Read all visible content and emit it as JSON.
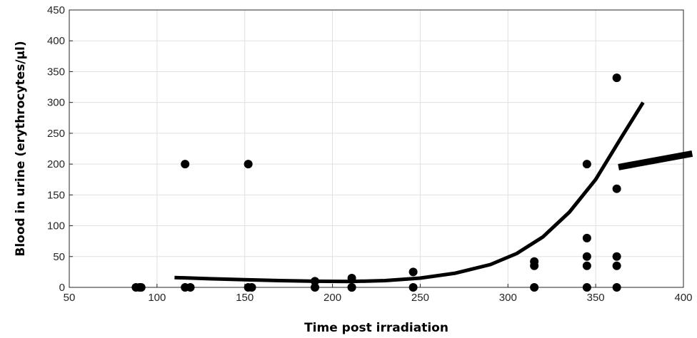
{
  "chart_data": {
    "type": "scatter",
    "title": "",
    "xlabel": "Time post irradiation",
    "ylabel": "Blood in urine (erythrocytes/µl)",
    "xlim": [
      50,
      400
    ],
    "ylim": [
      0,
      450
    ],
    "xticks": [
      50,
      100,
      150,
      200,
      250,
      300,
      350,
      400
    ],
    "yticks": [
      0,
      50,
      100,
      150,
      200,
      250,
      300,
      350,
      400,
      450
    ],
    "grid": true,
    "colors": {
      "points": "#000000",
      "fit": "#000000",
      "grid": "#e0e0e0",
      "axes": "#262626"
    },
    "points": [
      {
        "x": 88,
        "y": 0
      },
      {
        "x": 90,
        "y": 0
      },
      {
        "x": 91,
        "y": 0
      },
      {
        "x": 116,
        "y": 200
      },
      {
        "x": 116,
        "y": 0
      },
      {
        "x": 119,
        "y": 0
      },
      {
        "x": 152,
        "y": 200
      },
      {
        "x": 152,
        "y": 0
      },
      {
        "x": 154,
        "y": 0
      },
      {
        "x": 190,
        "y": 10
      },
      {
        "x": 190,
        "y": 0
      },
      {
        "x": 211,
        "y": 15
      },
      {
        "x": 211,
        "y": 0
      },
      {
        "x": 211,
        "y": 0
      },
      {
        "x": 246,
        "y": 25
      },
      {
        "x": 246,
        "y": 0
      },
      {
        "x": 315,
        "y": 42
      },
      {
        "x": 315,
        "y": 35
      },
      {
        "x": 315,
        "y": 0
      },
      {
        "x": 345,
        "y": 200
      },
      {
        "x": 345,
        "y": 80
      },
      {
        "x": 345,
        "y": 50
      },
      {
        "x": 345,
        "y": 35
      },
      {
        "x": 345,
        "y": 0
      },
      {
        "x": 362,
        "y": 340
      },
      {
        "x": 362,
        "y": 160
      },
      {
        "x": 362,
        "y": 50
      },
      {
        "x": 362,
        "y": 35
      },
      {
        "x": 362,
        "y": 0
      }
    ],
    "fit_curve": [
      {
        "x": 110,
        "y": 16
      },
      {
        "x": 130,
        "y": 14
      },
      {
        "x": 150,
        "y": 12.5
      },
      {
        "x": 170,
        "y": 11
      },
      {
        "x": 190,
        "y": 10
      },
      {
        "x": 210,
        "y": 9.5
      },
      {
        "x": 230,
        "y": 11
      },
      {
        "x": 250,
        "y": 15
      },
      {
        "x": 270,
        "y": 23
      },
      {
        "x": 290,
        "y": 37
      },
      {
        "x": 305,
        "y": 55
      },
      {
        "x": 320,
        "y": 82
      },
      {
        "x": 335,
        "y": 122
      },
      {
        "x": 350,
        "y": 175
      },
      {
        "x": 365,
        "y": 245
      },
      {
        "x": 377,
        "y": 300
      }
    ],
    "fit_segment": [
      {
        "x": 363,
        "y": 195
      },
      {
        "x": 405,
        "y": 217
      }
    ]
  }
}
